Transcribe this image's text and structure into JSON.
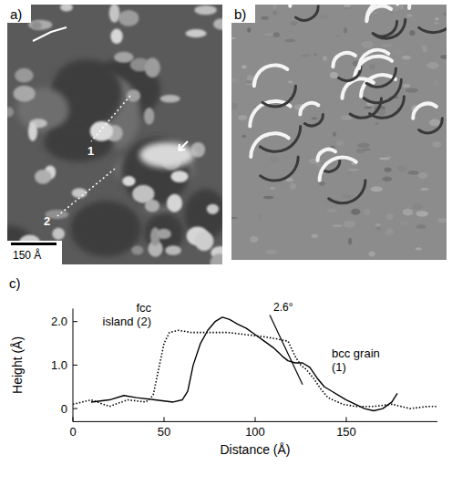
{
  "panels": [
    {
      "label": "a)",
      "scale_bar": "150 Å",
      "markers": [
        "1",
        "2"
      ]
    },
    {
      "label": "b)"
    },
    {
      "label": "c)"
    }
  ],
  "chart_data": {
    "type": "line",
    "xlabel": "Distance (Å)",
    "ylabel": "Height (Å)",
    "xlim": [
      0,
      200
    ],
    "ylim": [
      -0.3,
      2.3
    ],
    "xticks": [
      0,
      50,
      100,
      150
    ],
    "yticks": [
      0,
      {
        "value": 1,
        "label": "1.0"
      },
      {
        "value": 2,
        "label": "2.0"
      }
    ],
    "series": [
      {
        "name": "bcc grain (1)",
        "color": "#000000",
        "line_style": "solid",
        "x": [
          10,
          20,
          28,
          35,
          45,
          55,
          60,
          63,
          66,
          70,
          74,
          78,
          82,
          86,
          90,
          95,
          100,
          105,
          110,
          115,
          118,
          122,
          126,
          130,
          134,
          138,
          142,
          146,
          150,
          155,
          160,
          165,
          170,
          175,
          178
        ],
        "values": [
          0.15,
          0.2,
          0.3,
          0.25,
          0.2,
          0.15,
          0.2,
          0.4,
          1.0,
          1.5,
          1.8,
          2.0,
          2.1,
          2.05,
          1.95,
          1.85,
          1.7,
          1.55,
          1.4,
          1.2,
          1.1,
          1.05,
          1.05,
          0.95,
          0.7,
          0.5,
          0.4,
          0.3,
          0.2,
          0.1,
          0.0,
          -0.05,
          0.0,
          0.15,
          0.35
        ]
      },
      {
        "name": "fcc island (2)",
        "color": "#000000",
        "line_style": "dotted",
        "x": [
          0,
          10,
          20,
          30,
          40,
          44,
          47,
          50,
          53,
          58,
          65,
          75,
          85,
          95,
          105,
          112,
          118,
          122,
          125,
          128,
          132,
          136,
          140,
          148,
          155,
          165,
          175,
          185,
          195,
          200
        ],
        "values": [
          0.1,
          0.2,
          0.05,
          0.2,
          0.15,
          0.3,
          0.9,
          1.5,
          1.75,
          1.8,
          1.75,
          1.75,
          1.75,
          1.7,
          1.65,
          1.6,
          1.55,
          1.2,
          1.0,
          0.9,
          0.7,
          0.45,
          0.25,
          0.1,
          0.05,
          0.05,
          0.1,
          0.0,
          0.05,
          0.05
        ]
      }
    ],
    "annotations": [
      {
        "text": "2.6°",
        "x": [
          108,
          126
        ],
        "y": [
          2.15,
          0.55
        ]
      }
    ]
  }
}
